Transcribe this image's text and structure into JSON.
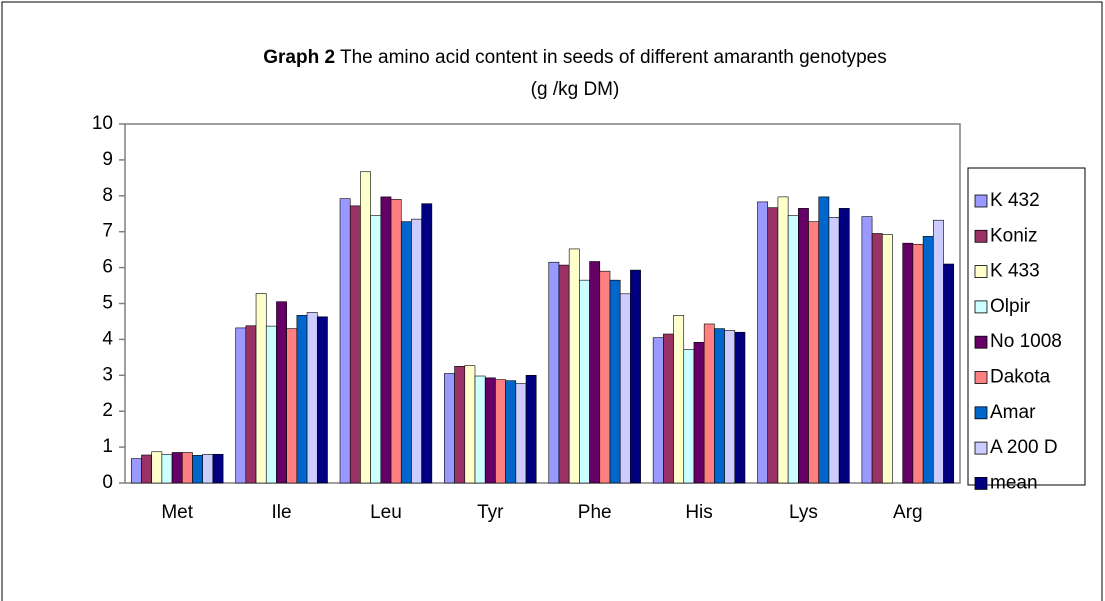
{
  "chart_data": {
    "type": "bar",
    "title_label": "Graph 2",
    "title": "The amino acid content in seeds of different amaranth genotypes",
    "subtitle": "(g /kg  DM)",
    "categories": [
      "Met",
      "Ile",
      "Leu",
      "Tyr",
      "Phe",
      "His",
      "Lys",
      "Arg"
    ],
    "series": [
      {
        "name": "K 432",
        "color": "#9999ff",
        "values": [
          0.68,
          4.32,
          7.92,
          3.05,
          6.15,
          4.05,
          7.83,
          7.42
        ]
      },
      {
        "name": "Koniz",
        "color": "#993366",
        "values": [
          0.78,
          4.38,
          7.72,
          3.25,
          6.07,
          4.15,
          7.67,
          6.95
        ]
      },
      {
        "name": "K 433",
        "color": "#ffffcc",
        "values": [
          0.87,
          5.28,
          8.67,
          3.27,
          6.52,
          4.67,
          7.97,
          6.92
        ]
      },
      {
        "name": "Olpir",
        "color": "#ccffff",
        "values": [
          0.8,
          4.37,
          7.45,
          2.98,
          5.65,
          3.72,
          7.45,
          null
        ]
      },
      {
        "name": "No 1008",
        "color": "#660066",
        "values": [
          0.85,
          5.05,
          7.97,
          2.93,
          6.17,
          3.92,
          7.65,
          6.68
        ]
      },
      {
        "name": "Dakota",
        "color": "#ff8080",
        "values": [
          0.85,
          4.3,
          7.9,
          2.88,
          5.9,
          4.43,
          7.28,
          6.65
        ]
      },
      {
        "name": "Amar",
        "color": "#0066cc",
        "values": [
          0.77,
          4.67,
          7.28,
          2.85,
          5.65,
          4.3,
          7.97,
          6.87
        ]
      },
      {
        "name": "A 200 D",
        "color": "#ccccff",
        "values": [
          0.8,
          4.75,
          7.35,
          2.77,
          5.27,
          4.25,
          7.4,
          7.32
        ]
      },
      {
        "name": "mean",
        "color": "#000080",
        "values": [
          0.8,
          4.63,
          7.78,
          3.0,
          5.93,
          4.2,
          7.65,
          6.1
        ]
      }
    ],
    "ylim": [
      0,
      10
    ],
    "yticks": [
      0,
      1,
      2,
      3,
      4,
      5,
      6,
      7,
      8,
      9,
      10
    ],
    "grid": false,
    "legend": "right"
  }
}
